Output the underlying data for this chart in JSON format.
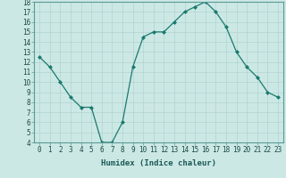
{
  "xlabel": "Humidex (Indice chaleur)",
  "x": [
    0,
    1,
    2,
    3,
    4,
    5,
    6,
    7,
    8,
    9,
    10,
    11,
    12,
    13,
    14,
    15,
    16,
    17,
    18,
    19,
    20,
    21,
    22,
    23
  ],
  "y": [
    12.5,
    11.5,
    10.0,
    8.5,
    7.5,
    7.5,
    4.0,
    4.0,
    6.0,
    11.5,
    14.5,
    15.0,
    15.0,
    16.0,
    17.0,
    17.5,
    18.0,
    17.0,
    15.5,
    13.0,
    11.5,
    10.5,
    9.0,
    8.5
  ],
  "ylim": [
    4,
    18
  ],
  "yticks": [
    4,
    5,
    6,
    7,
    8,
    9,
    10,
    11,
    12,
    13,
    14,
    15,
    16,
    17,
    18
  ],
  "xticks": [
    0,
    1,
    2,
    3,
    4,
    5,
    6,
    7,
    8,
    9,
    10,
    11,
    12,
    13,
    14,
    15,
    16,
    17,
    18,
    19,
    20,
    21,
    22,
    23
  ],
  "line_color": "#1a7a6e",
  "marker_color": "#1a7a6e",
  "bg_color": "#cce8e5",
  "grid_color": "#aacfcc",
  "label_fontsize": 6.5,
  "tick_fontsize": 5.5,
  "marker_size": 2.0,
  "line_width": 0.9
}
